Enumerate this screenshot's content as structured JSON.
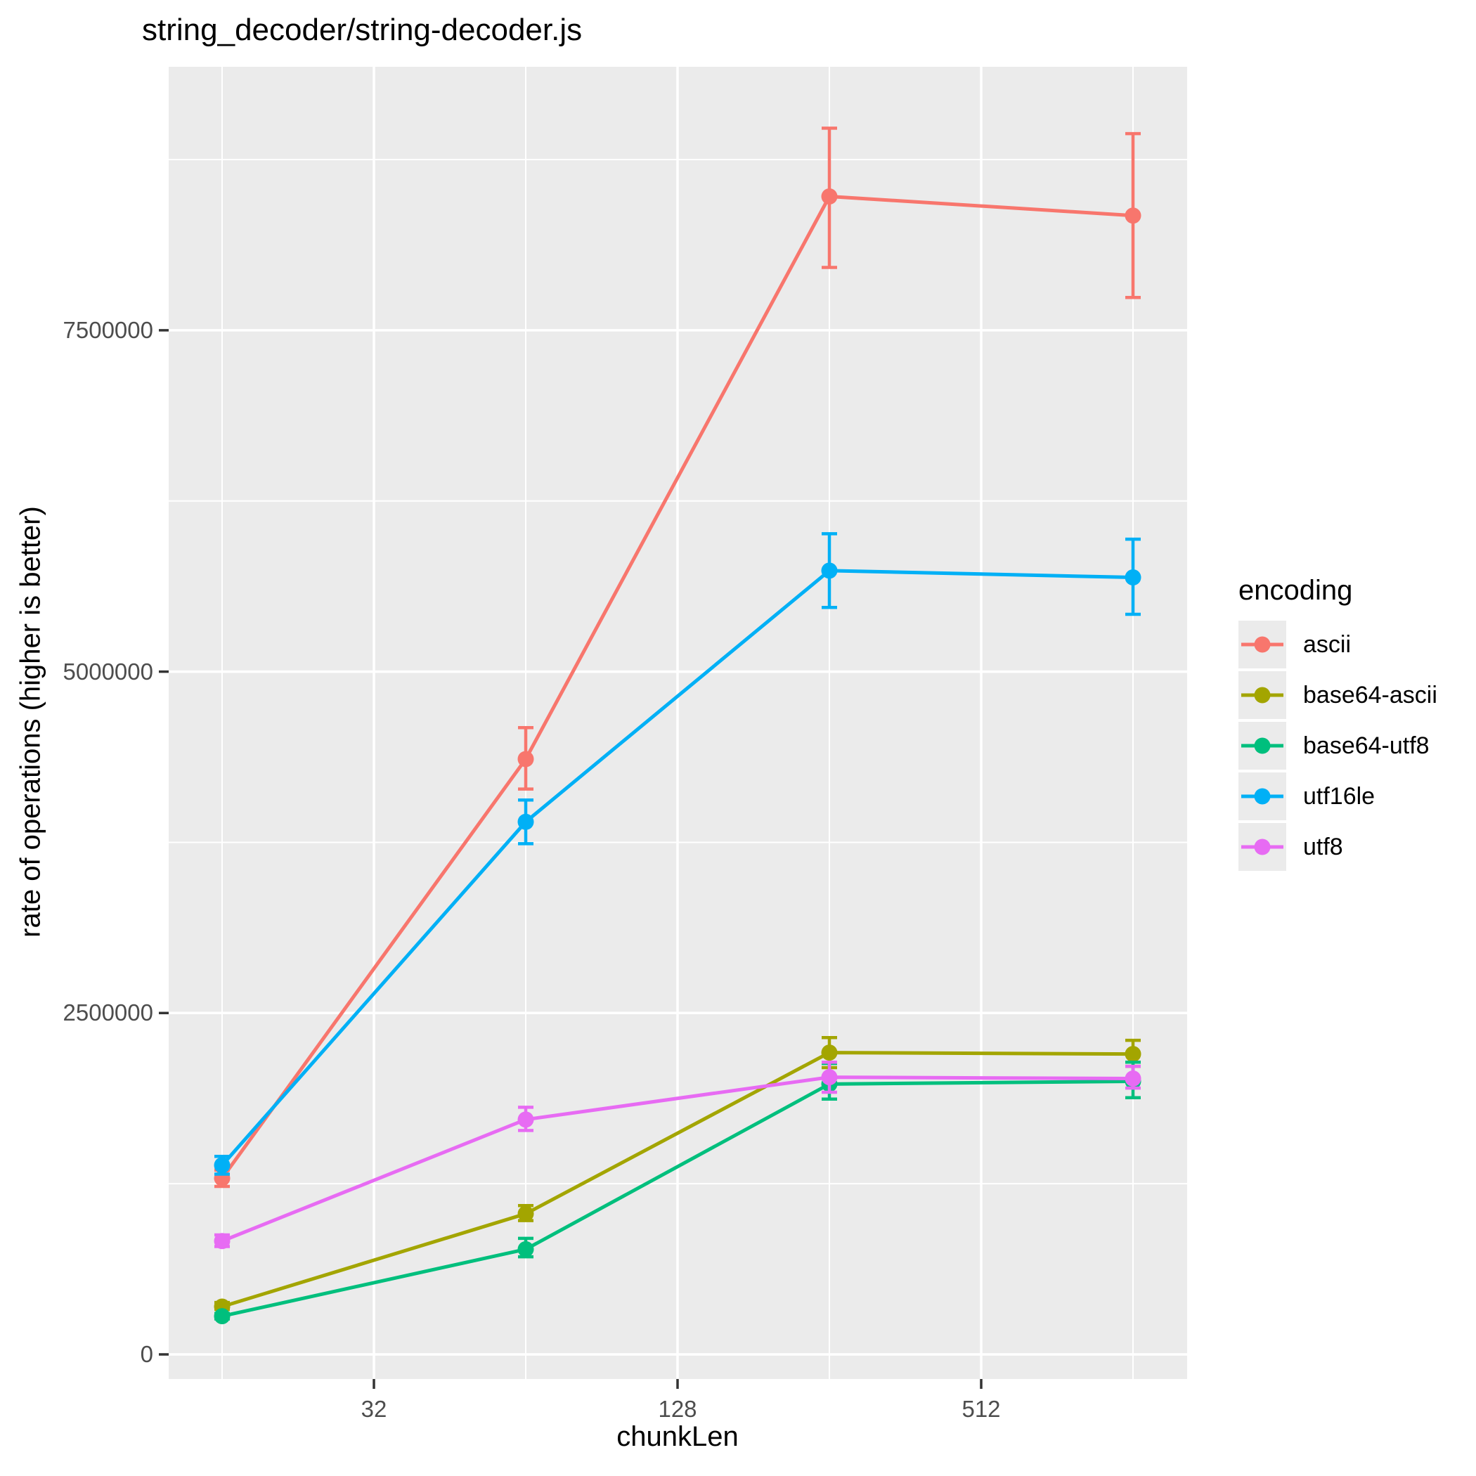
{
  "title": "string_decoder/string-decoder.js",
  "panel": {
    "bg": "#EBEBEB",
    "grid_color": "#FFFFFF",
    "tick_color": "#333333",
    "tick_label_color": "#4D4D4D"
  },
  "chart_data": {
    "type": "line",
    "title": "string_decoder/string-decoder.js",
    "xlabel": "chunkLen",
    "ylabel": "rate of operations (higher is better)",
    "x_scale": "log",
    "grid": true,
    "legend_title": "encoding",
    "legend_position": "right",
    "x": [
      16,
      64,
      256,
      1024
    ],
    "x_ticks": [
      "32",
      "128",
      "512"
    ],
    "x_tick_values": [
      32,
      128,
      512
    ],
    "x_minor": [
      16,
      64,
      256,
      1024
    ],
    "y_ticks": [
      "0",
      "2500000",
      "5000000",
      "7500000"
    ],
    "y_tick_values": [
      0,
      2500000,
      5000000,
      7500000
    ],
    "y_minor": [
      1250000,
      3750000,
      6250000,
      8750000
    ],
    "ylim": [
      -180000,
      9450000
    ],
    "series": [
      {
        "name": "ascii",
        "color": "#F8766D",
        "values": [
          1290000,
          4360000,
          8480000,
          8340000
        ],
        "err_low": [
          1230000,
          4140000,
          7960000,
          7740000
        ],
        "err_high": [
          1350000,
          4590000,
          8980000,
          8940000
        ]
      },
      {
        "name": "base64-ascii",
        "color": "#A3A500",
        "values": [
          350000,
          1030000,
          2210000,
          2200000
        ],
        "err_low": [
          330000,
          980000,
          2100000,
          2110000
        ],
        "err_high": [
          380000,
          1090000,
          2320000,
          2300000
        ]
      },
      {
        "name": "base64-utf8",
        "color": "#00BF7D",
        "values": [
          280000,
          770000,
          1980000,
          2000000
        ],
        "err_low": [
          260000,
          715000,
          1870000,
          1880000
        ],
        "err_high": [
          300000,
          850000,
          2130000,
          2140000
        ]
      },
      {
        "name": "utf16le",
        "color": "#00B0F6",
        "values": [
          1385000,
          3900000,
          5740000,
          5690000
        ],
        "err_low": [
          1320000,
          3740000,
          5470000,
          5420000
        ],
        "err_high": [
          1450000,
          4060000,
          6010000,
          5970000
        ]
      },
      {
        "name": "utf8",
        "color": "#E76BF3",
        "values": [
          830000,
          1720000,
          2030000,
          2020000
        ],
        "err_low": [
          790000,
          1640000,
          1920000,
          1950000
        ],
        "err_high": [
          875000,
          1810000,
          2140000,
          2110000
        ]
      }
    ]
  }
}
